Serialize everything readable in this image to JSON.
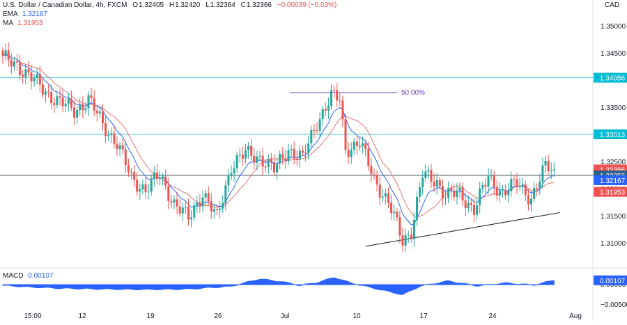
{
  "header": {
    "symbol": "U.S. Dollar / Canadian Dollar, 4h, FXCM",
    "o_label": "O",
    "o_val": "1.32405",
    "h_label": "H",
    "h_val": "1.32420",
    "l_label": "L",
    "l_val": "1.32364",
    "c_label": "C",
    "c_val": "1.32366",
    "change": "−0.00039 (−0.03%)",
    "ema_label": "EMA",
    "ema_val": "1.32167",
    "ma_label": "MA",
    "ma_val": "1.31953",
    "currency": "CAD"
  },
  "macd": {
    "label": "MACD",
    "value": "0.00107"
  },
  "colors": {
    "up": "#26a69a",
    "down": "#ef5350",
    "ema": "#2962ff",
    "ma": "#e57373",
    "hline": "#4dd0e1",
    "pline": "#455a64",
    "macd": "#2962ff",
    "fib": "#673ab7"
  },
  "chart_data": {
    "type": "candlestick",
    "y_axis_ticks": [
      1.31,
      1.315,
      1.32,
      1.325,
      1.33,
      1.335,
      1.345,
      1.35
    ],
    "y_axis_tick_labels": [
      "1.31000",
      "1.31500",
      "1.32000",
      "1.32500",
      "1.33000",
      "1.33500",
      "1.34500",
      "1.35000"
    ],
    "x_axis_labels": [
      "15:00",
      "12",
      "19",
      "26",
      "Jul",
      "10",
      "17",
      "24",
      "Aug"
    ],
    "macd_axis_labels": [
      "0.00000",
      "−0.00500"
    ],
    "price_badges": [
      {
        "label": "1.34056",
        "value": 1.34056,
        "color": "#00bcd4"
      },
      {
        "label": "1.33013",
        "value": 1.33013,
        "color": "#00bcd4"
      },
      {
        "label": "1.32366",
        "value": 1.32366,
        "color": "#ef5350"
      },
      {
        "label": "1.32256",
        "value": 1.32256,
        "color": "#2c5f8a"
      },
      {
        "label": "1.32167",
        "value": 1.32167,
        "color": "#2962ff"
      },
      {
        "label": "1.31953",
        "value": 1.31953,
        "color": "#ef5350"
      }
    ],
    "macd_badge": {
      "label": "0.00107",
      "value": 0.00107
    },
    "horizontal_lines": [
      {
        "name": "resistance-1",
        "value": 1.34056
      },
      {
        "name": "resistance-2",
        "value": 1.33013
      },
      {
        "name": "pivot",
        "value": 1.32256
      }
    ],
    "fib_label": "50.00%",
    "fib_level": 1.3378,
    "trendline": {
      "from": [
        127,
        1.3095
      ],
      "to": [
        195,
        1.3157
      ]
    },
    "close_path": [
      [
        0,
        1.344
      ],
      [
        5,
        1.343
      ],
      [
        10,
        1.3405
      ],
      [
        15,
        1.338
      ],
      [
        20,
        1.336
      ],
      [
        25,
        1.3345
      ],
      [
        30,
        1.3365
      ],
      [
        35,
        1.332
      ],
      [
        40,
        1.3285
      ],
      [
        45,
        1.322
      ],
      [
        50,
        1.32
      ],
      [
        55,
        1.3225
      ],
      [
        60,
        1.3175
      ],
      [
        65,
        1.3145
      ],
      [
        70,
        1.3195
      ],
      [
        75,
        1.3145
      ],
      [
        80,
        1.3245
      ],
      [
        85,
        1.3265
      ],
      [
        90,
        1.326
      ],
      [
        95,
        1.3235
      ],
      [
        100,
        1.3275
      ],
      [
        105,
        1.3255
      ],
      [
        110,
        1.3325
      ],
      [
        115,
        1.337
      ],
      [
        118,
        1.3365
      ],
      [
        120,
        1.3275
      ],
      [
        125,
        1.3285
      ],
      [
        130,
        1.322
      ],
      [
        135,
        1.3175
      ],
      [
        140,
        1.3105
      ],
      [
        143,
        1.3125
      ],
      [
        147,
        1.3225
      ],
      [
        152,
        1.3215
      ],
      [
        155,
        1.319
      ],
      [
        160,
        1.319
      ],
      [
        165,
        1.3165
      ],
      [
        170,
        1.322
      ],
      [
        175,
        1.3195
      ],
      [
        180,
        1.321
      ],
      [
        185,
        1.3185
      ],
      [
        190,
        1.324
      ],
      [
        193,
        1.3237
      ]
    ],
    "macd_path": [
      [
        0,
        -0.0002
      ],
      [
        10,
        -0.0006
      ],
      [
        20,
        -0.0009
      ],
      [
        35,
        -0.0011
      ],
      [
        50,
        -0.0012
      ],
      [
        65,
        -0.0011
      ],
      [
        80,
        -0.0004
      ],
      [
        90,
        0.0014
      ],
      [
        98,
        0.0007
      ],
      [
        104,
        -0.0002
      ],
      [
        110,
        0.0005
      ],
      [
        116,
        0.0018
      ],
      [
        122,
        0.0004
      ],
      [
        130,
        -0.0009
      ],
      [
        140,
        -0.0025
      ],
      [
        146,
        -0.0004
      ],
      [
        156,
        0.0009
      ],
      [
        166,
        -0.0003
      ],
      [
        176,
        0.0004
      ],
      [
        186,
        -0.0001
      ],
      [
        193,
        0.0011
      ]
    ]
  }
}
